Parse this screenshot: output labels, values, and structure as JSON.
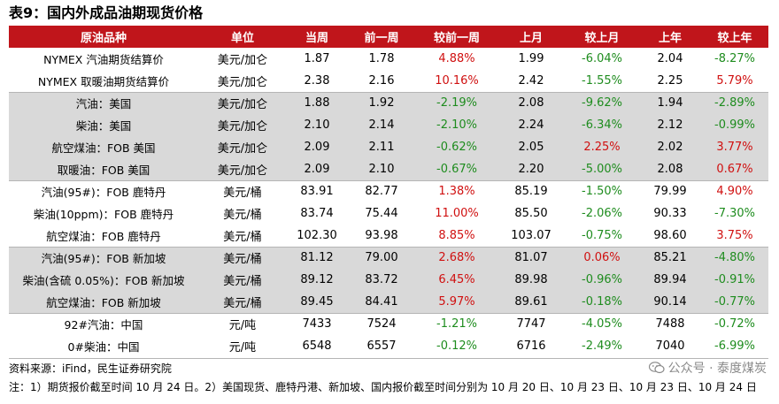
{
  "title": "表9：国内外成品油期现货价格",
  "headers": [
    "原油品种",
    "单位",
    "当周",
    "前一周",
    "较前一周",
    "上月",
    "较上月",
    "上年",
    "较上年"
  ],
  "rows": [
    {
      "name": "NYMEX 汽油期货结算价",
      "unit": "美元/加仑",
      "cur": "1.87",
      "prev_week": "1.78",
      "chg_week": "4.88%",
      "prev_month": "1.99",
      "chg_month": "-6.04%",
      "prev_year": "2.04",
      "chg_year": "-8.27%"
    },
    {
      "name": "NYMEX 取暖油期货结算价",
      "unit": "美元/加仑",
      "cur": "2.38",
      "prev_week": "2.16",
      "chg_week": "10.16%",
      "prev_month": "2.42",
      "chg_month": "-1.55%",
      "prev_year": "2.25",
      "chg_year": "5.79%"
    },
    {
      "name": "汽油：美国",
      "unit": "美元/加仑",
      "cur": "1.88",
      "prev_week": "1.92",
      "chg_week": "-2.19%",
      "prev_month": "2.08",
      "chg_month": "-9.62%",
      "prev_year": "1.94",
      "chg_year": "-2.89%"
    },
    {
      "name": "柴油：美国",
      "unit": "美元/加仑",
      "cur": "2.10",
      "prev_week": "2.14",
      "chg_week": "-2.10%",
      "prev_month": "2.24",
      "chg_month": "-6.34%",
      "prev_year": "2.12",
      "chg_year": "-0.99%"
    },
    {
      "name": "航空煤油：FOB 美国",
      "unit": "美元/加仑",
      "cur": "2.09",
      "prev_week": "2.11",
      "chg_week": "-0.62%",
      "prev_month": "2.05",
      "chg_month": "2.25%",
      "prev_year": "2.02",
      "chg_year": "3.77%"
    },
    {
      "name": "取暖油：FOB 美国",
      "unit": "美元/加仑",
      "cur": "2.09",
      "prev_week": "2.10",
      "chg_week": "-0.67%",
      "prev_month": "2.20",
      "chg_month": "-5.00%",
      "prev_year": "2.08",
      "chg_year": "0.67%"
    },
    {
      "name": "汽油(95#)：FOB 鹿特丹",
      "unit": "美元/桶",
      "cur": "83.91",
      "prev_week": "82.77",
      "chg_week": "1.38%",
      "prev_month": "85.19",
      "chg_month": "-1.50%",
      "prev_year": "79.99",
      "chg_year": "4.90%"
    },
    {
      "name": "柴油(10ppm)：FOB 鹿特丹",
      "unit": "美元/桶",
      "cur": "83.74",
      "prev_week": "75.44",
      "chg_week": "11.00%",
      "prev_month": "85.50",
      "chg_month": "-2.06%",
      "prev_year": "90.33",
      "chg_year": "-7.30%"
    },
    {
      "name": "航空煤油：FOB 鹿特丹",
      "unit": "美元/桶",
      "cur": "102.30",
      "prev_week": "93.98",
      "chg_week": "8.85%",
      "prev_month": "103.07",
      "chg_month": "-0.75%",
      "prev_year": "98.60",
      "chg_year": "3.75%"
    },
    {
      "name": "汽油(95#)：FOB 新加坡",
      "unit": "美元/桶",
      "cur": "81.12",
      "prev_week": "79.00",
      "chg_week": "2.68%",
      "prev_month": "81.07",
      "chg_month": "0.06%",
      "prev_year": "85.21",
      "chg_year": "-4.80%"
    },
    {
      "name": "柴油(含硫 0.05%)：FOB 新加坡",
      "unit": "美元/桶",
      "cur": "89.12",
      "prev_week": "83.72",
      "chg_week": "6.45%",
      "prev_month": "89.98",
      "chg_month": "-0.96%",
      "prev_year": "89.94",
      "chg_year": "-0.91%"
    },
    {
      "name": "航空煤油：FOB 新加坡",
      "unit": "美元/桶",
      "cur": "89.45",
      "prev_week": "84.41",
      "chg_week": "5.97%",
      "prev_month": "89.61",
      "chg_month": "-0.18%",
      "prev_year": "90.14",
      "chg_year": "-0.77%"
    },
    {
      "name": "92#汽油：中国",
      "unit": "元/吨",
      "cur": "7433",
      "prev_week": "7524",
      "chg_week": "-1.21%",
      "prev_month": "7747",
      "chg_month": "-4.05%",
      "prev_year": "7488",
      "chg_year": "-0.72%"
    },
    {
      "name": "0#柴油：中国",
      "unit": "元/吨",
      "cur": "6548",
      "prev_week": "6557",
      "chg_week": "-0.12%",
      "prev_month": "6716",
      "chg_month": "-2.49%",
      "prev_year": "7040",
      "chg_year": "-6.99%"
    }
  ],
  "row_shading": [
    "white",
    "white",
    "gray",
    "gray",
    "gray",
    "gray",
    "white",
    "white",
    "white",
    "gray",
    "gray",
    "gray",
    "white",
    "white"
  ],
  "colors": {
    "header_bg": "#c0151b",
    "positive": "#d01010",
    "negative": "#1e8c1e",
    "gray_row": "#d9d9d9"
  },
  "source": "资料来源：iFind，民生证券研究院",
  "note": "注：1）期货报价截至时间 10 月 24 日。2）美国现货、鹿特丹港、新加坡、国内报价截至时间分别为 10 月 20 日、10 月 23 日、10 月 23 日、10 月 24 日",
  "watermark": "公众号 · 泰度煤炭",
  "watermark_icon": "wechat-icon"
}
